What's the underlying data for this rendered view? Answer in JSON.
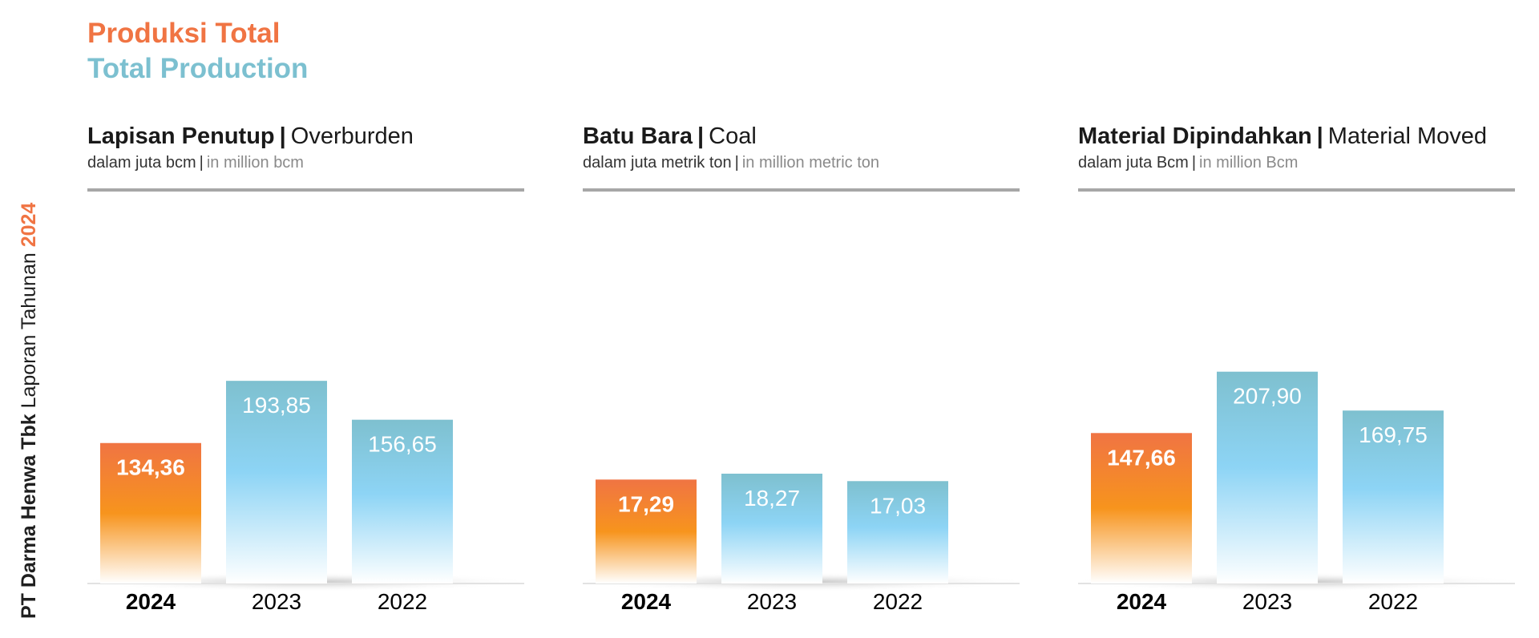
{
  "side_label": {
    "company": "PT Darma Henwa Tbk",
    "report": "Laporan Tahunan",
    "year": "2024"
  },
  "header": {
    "title_id": "Produksi Total",
    "title_en": "Total Production"
  },
  "colors": {
    "orange_top": "#f07443",
    "orange_mid": "#f7941d",
    "blue_top": "#7ec0cf",
    "blue_mid": "#8dd4f5",
    "accent_title_en": "#7cc0d0"
  },
  "chart_data": [
    {
      "type": "bar",
      "title_bold": "Lapisan Penutup",
      "title_light": "Overburden",
      "unit_id": "dalam juta bcm",
      "unit_en": "in million bcm",
      "categories": [
        "2024",
        "2023",
        "2022"
      ],
      "values": [
        134.36,
        193.85,
        156.65
      ],
      "value_labels": [
        "134,36",
        "193,85",
        "156,65"
      ],
      "highlight": "2024",
      "ylim": [
        0,
        230
      ]
    },
    {
      "type": "bar",
      "title_bold": "Batu Bara",
      "title_light": "Coal",
      "unit_id": "dalam juta metrik ton",
      "unit_en": "in million metric ton",
      "categories": [
        "2024",
        "2023",
        "2022"
      ],
      "values": [
        17.29,
        18.27,
        17.03
      ],
      "value_labels": [
        "17,29",
        "18,27",
        "17,03"
      ],
      "highlight": "2024",
      "ylim": [
        0,
        40
      ]
    },
    {
      "type": "bar",
      "title_bold": "Material Dipindahkan",
      "title_light": "Material Moved",
      "unit_id": "dalam juta Bcm",
      "unit_en": "in million Bcm",
      "categories": [
        "2024",
        "2023",
        "2022"
      ],
      "values": [
        147.66,
        207.9,
        169.75
      ],
      "value_labels": [
        "147,66",
        "207,90",
        "169,75"
      ],
      "highlight": "2024",
      "ylim": [
        0,
        236
      ]
    }
  ]
}
